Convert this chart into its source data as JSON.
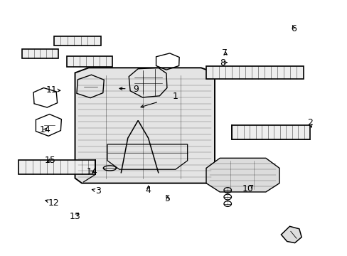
{
  "background_color": "#ffffff",
  "line_color": "#000000",
  "text_color": "#000000",
  "figure_width": 4.89,
  "figure_height": 3.6,
  "dpi": 100,
  "font_size": 9,
  "line_width": 1.0
}
